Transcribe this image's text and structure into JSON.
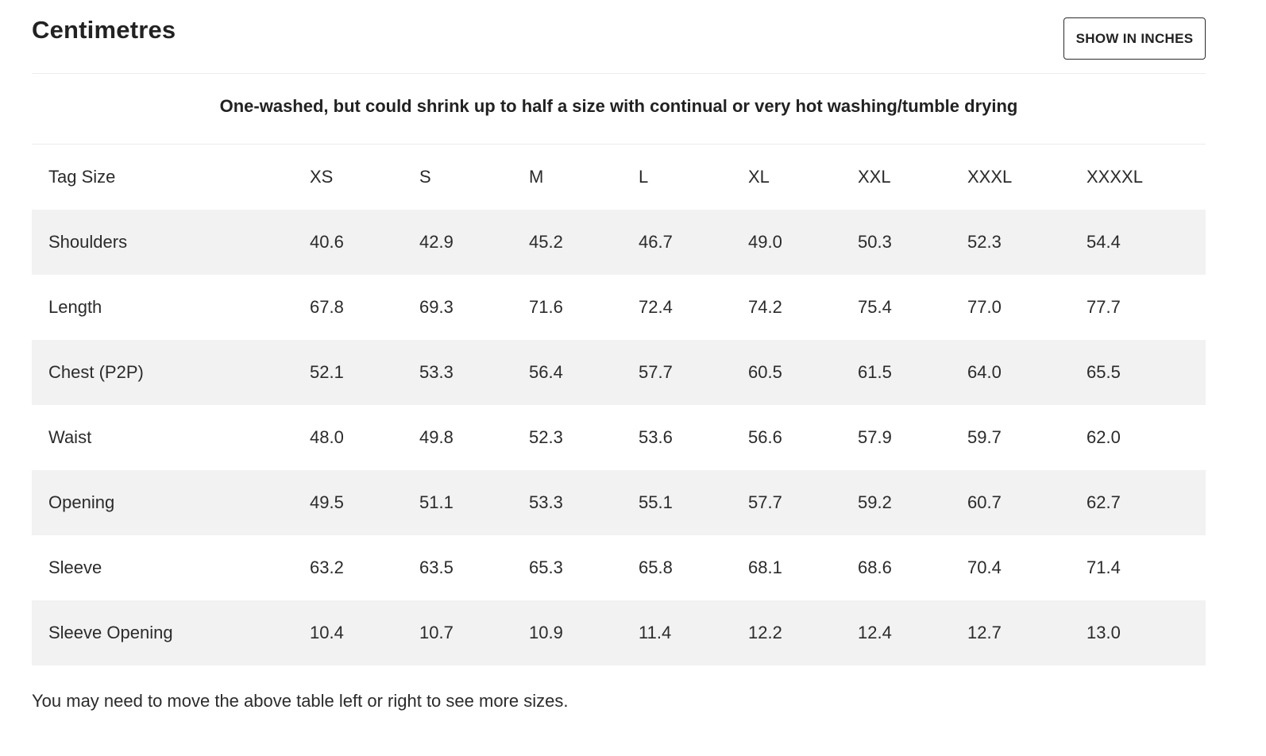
{
  "header": {
    "title": "Centimetres",
    "toggle_label": "SHOW IN INCHES"
  },
  "notice": "One-washed, but could shrink up to half a size with continual or very hot washing/tumble drying",
  "table": {
    "columns": [
      "Tag Size",
      "XS",
      "S",
      "M",
      "L",
      "XL",
      "XXL",
      "XXXL",
      "XXXXL"
    ],
    "rows": [
      [
        "Shoulders",
        "40.6",
        "42.9",
        "45.2",
        "46.7",
        "49.0",
        "50.3",
        "52.3",
        "54.4"
      ],
      [
        "Length",
        "67.8",
        "69.3",
        "71.6",
        "72.4",
        "74.2",
        "75.4",
        "77.0",
        "77.7"
      ],
      [
        "Chest (P2P)",
        "52.1",
        "53.3",
        "56.4",
        "57.7",
        "60.5",
        "61.5",
        "64.0",
        "65.5"
      ],
      [
        "Waist",
        "48.0",
        "49.8",
        "52.3",
        "53.6",
        "56.6",
        "57.9",
        "59.7",
        "62.0"
      ],
      [
        "Opening",
        "49.5",
        "51.1",
        "53.3",
        "55.1",
        "57.7",
        "59.2",
        "60.7",
        "62.7"
      ],
      [
        "Sleeve",
        "63.2",
        "63.5",
        "65.3",
        "65.8",
        "68.1",
        "68.6",
        "70.4",
        "71.4"
      ],
      [
        "Sleeve Opening",
        "10.4",
        "10.7",
        "10.9",
        "11.4",
        "12.2",
        "12.4",
        "12.7",
        "13.0"
      ]
    ]
  },
  "footnote": "You may need to move the above table left or right to see more sizes."
}
